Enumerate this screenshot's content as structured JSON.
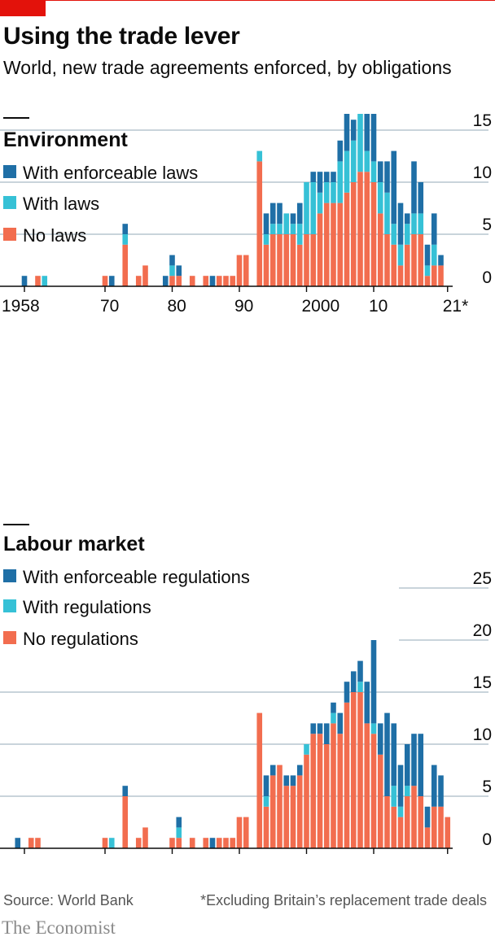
{
  "header": {
    "title": "Using the trade lever",
    "subtitle": "World, new trade agreements enforced, by obligations"
  },
  "colors": {
    "enforceable": "#1f6fa6",
    "with": "#36c1d6",
    "none": "#f26d4f",
    "accent": "#e3120b"
  },
  "footer": {
    "source": "Source: World Bank",
    "footnote": "*Excluding Britain’s replacement trade deals",
    "brand": "The Economist"
  },
  "chart_data": [
    {
      "type": "bar",
      "stacked": true,
      "title": "Environment",
      "ylim": [
        0,
        25
      ],
      "yticks": [
        0,
        5,
        10,
        15,
        20,
        25
      ],
      "xtick_labels": [
        {
          "year": 1958,
          "label": "1958"
        },
        {
          "year": 1970,
          "label": "70"
        },
        {
          "year": 1980,
          "label": "80"
        },
        {
          "year": 1990,
          "label": "90"
        },
        {
          "year": 2000,
          "label": "2000"
        },
        {
          "year": 2010,
          "label": "10"
        },
        {
          "year": 2021,
          "label": "21*"
        }
      ],
      "legend": [
        "With enforceable laws",
        "With laws",
        "No laws"
      ],
      "x": [
        1958,
        1960,
        1961,
        1970,
        1971,
        1973,
        1975,
        1976,
        1979,
        1980,
        1981,
        1983,
        1985,
        1986,
        1987,
        1988,
        1989,
        1990,
        1991,
        1993,
        1994,
        1995,
        1996,
        1997,
        1998,
        1999,
        2000,
        2001,
        2002,
        2003,
        2004,
        2005,
        2006,
        2007,
        2008,
        2009,
        2010,
        2011,
        2012,
        2013,
        2014,
        2015,
        2016,
        2017,
        2018,
        2019,
        2020
      ],
      "series": [
        {
          "name": "No laws",
          "values": [
            0,
            1,
            0,
            1,
            0,
            4,
            1,
            2,
            0,
            1,
            1,
            1,
            1,
            0,
            1,
            1,
            1,
            3,
            3,
            12,
            4,
            5,
            5,
            5,
            5,
            4,
            5,
            5,
            7,
            8,
            8,
            8,
            9,
            10,
            11,
            11,
            10,
            7,
            5,
            4,
            2,
            4,
            5,
            5,
            1,
            2,
            2
          ]
        },
        {
          "name": "With laws",
          "values": [
            0,
            0,
            1,
            0,
            0,
            1,
            0,
            0,
            0,
            1,
            0,
            0,
            0,
            0,
            0,
            0,
            0,
            0,
            0,
            1,
            1,
            1,
            1,
            2,
            1,
            2,
            5,
            5,
            2,
            2,
            2,
            4,
            4,
            4,
            6,
            2,
            2,
            3,
            4,
            2,
            2,
            2,
            2,
            2,
            1,
            2,
            0
          ]
        },
        {
          "name": "With enforceable laws",
          "values": [
            1,
            0,
            0,
            0,
            1,
            1,
            0,
            0,
            1,
            1,
            1,
            0,
            0,
            1,
            0,
            0,
            0,
            0,
            0,
            0,
            2,
            2,
            2,
            0,
            1,
            2,
            0,
            1,
            2,
            1,
            1,
            2,
            4,
            2,
            3,
            7,
            8,
            2,
            3,
            7,
            4,
            1,
            5,
            3,
            2,
            3,
            1
          ]
        }
      ]
    },
    {
      "type": "bar",
      "stacked": true,
      "title": "Labour market",
      "ylim": [
        0,
        25
      ],
      "yticks": [
        0,
        5,
        10,
        15,
        20,
        25
      ],
      "xtick_labels": [
        {
          "year": 1958,
          "label": "1958"
        },
        {
          "year": 1970,
          "label": "70"
        },
        {
          "year": 1980,
          "label": "80"
        },
        {
          "year": 1990,
          "label": "90"
        },
        {
          "year": 2000,
          "label": "2000"
        },
        {
          "year": 2010,
          "label": "10"
        },
        {
          "year": 2021,
          "label": "21*"
        }
      ],
      "legend": [
        "With enforceable regulations",
        "With regulations",
        "No regulations"
      ],
      "x": [
        1957,
        1959,
        1960,
        1970,
        1971,
        1973,
        1975,
        1976,
        1979,
        1980,
        1981,
        1983,
        1985,
        1986,
        1987,
        1988,
        1989,
        1990,
        1991,
        1993,
        1994,
        1995,
        1996,
        1997,
        1998,
        1999,
        2000,
        2001,
        2002,
        2003,
        2004,
        2005,
        2006,
        2007,
        2008,
        2009,
        2010,
        2011,
        2012,
        2013,
        2014,
        2015,
        2016,
        2017,
        2018,
        2019,
        2020,
        2021
      ],
      "series": [
        {
          "name": "No regulations",
          "values": [
            0,
            1,
            1,
            1,
            0,
            5,
            1,
            2,
            0,
            1,
            1,
            1,
            1,
            0,
            1,
            1,
            1,
            3,
            3,
            13,
            4,
            7,
            8,
            6,
            6,
            7,
            9,
            11,
            11,
            10,
            12,
            11,
            14,
            15,
            15,
            12,
            11,
            9,
            5,
            4,
            3,
            5,
            6,
            5,
            2,
            4,
            4,
            3
          ]
        },
        {
          "name": "With regulations",
          "values": [
            0,
            0,
            0,
            0,
            1,
            0,
            0,
            0,
            0,
            0,
            1,
            0,
            0,
            0,
            0,
            0,
            0,
            0,
            0,
            0,
            1,
            0,
            0,
            0,
            0,
            0,
            1,
            0,
            0,
            0,
            1,
            0,
            0,
            0,
            1,
            0,
            1,
            0,
            0,
            2,
            1,
            1,
            0,
            0,
            0,
            0,
            0,
            0
          ]
        },
        {
          "name": "With enforceable regulations",
          "values": [
            1,
            0,
            0,
            0,
            0,
            1,
            0,
            0,
            0,
            0,
            1,
            0,
            0,
            1,
            0,
            0,
            0,
            0,
            0,
            0,
            2,
            1,
            0,
            1,
            1,
            1,
            0,
            1,
            1,
            2,
            1,
            2,
            2,
            2,
            2,
            4,
            8,
            3,
            8,
            6,
            4,
            4,
            5,
            6,
            2,
            4,
            3,
            0
          ]
        }
      ]
    }
  ]
}
